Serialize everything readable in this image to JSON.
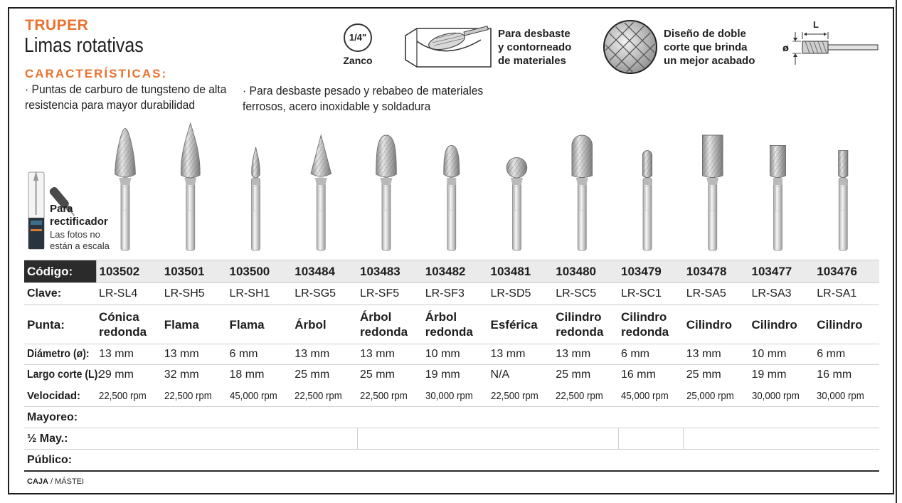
{
  "header": {
    "brand": "TRUPER",
    "title": "Limas rotativas",
    "features_heading": "CARACTERÍSTICAS:",
    "bullets": [
      "· Puntas de carburo de tungsteno de alta resistencia para mayor durabilidad",
      "· Para desbaste pesado y rebabeo de materiales ferrosos, acero inoxidable y soldadura"
    ]
  },
  "icons": {
    "shank_size": "1/4\"",
    "shank_label": "Zanco",
    "deburr_text": [
      "Para desbaste",
      "y contorneado",
      "de materiales"
    ],
    "double_cut_text": [
      "Diseño de doble",
      "corte que brinda",
      "un mejor acabado"
    ],
    "dimension_L": "L",
    "dimension_diam": "ø"
  },
  "side": {
    "grinder_label_line1": "Para",
    "grinder_label_line2": "rectificador",
    "scale_note_line1": "Las fotos no",
    "scale_note_line2": "están a escala"
  },
  "table": {
    "labels": {
      "code": "Código:",
      "clave": "Clave:",
      "punta": "Punta:",
      "diametro": "Diámetro (ø):",
      "largo": "Largo corte (L):",
      "velocidad": "Velocidad:",
      "mayoreo": "Mayoreo:",
      "medio_mayoreo": "½ May.:",
      "publico": "Público:"
    },
    "products": [
      {
        "code": "103502",
        "clave": "LR-SL4",
        "punta": "Cónica redonda",
        "diametro": "13 mm",
        "largo": "29 mm",
        "velocidad": "22,500 rpm",
        "shape": "cone-round"
      },
      {
        "code": "103501",
        "clave": "LR-SH5",
        "punta": "Flama",
        "diametro": "13 mm",
        "largo": "32 mm",
        "velocidad": "22,500 rpm",
        "shape": "flame"
      },
      {
        "code": "103500",
        "clave": "LR-SH1",
        "punta": "Flama",
        "diametro": "6 mm",
        "largo": "18 mm",
        "velocidad": "45,000 rpm",
        "shape": "flame"
      },
      {
        "code": "103484",
        "clave": "LR-SG5",
        "punta": "Árbol",
        "diametro": "13 mm",
        "largo": "25 mm",
        "velocidad": "22,500 rpm",
        "shape": "tree"
      },
      {
        "code": "103483",
        "clave": "LR-SF5",
        "punta": "Árbol redonda",
        "diametro": "13 mm",
        "largo": "25 mm",
        "velocidad": "22,500 rpm",
        "shape": "tree-round"
      },
      {
        "code": "103482",
        "clave": "LR-SF3",
        "punta": "Árbol redonda",
        "diametro": "10 mm",
        "largo": "19 mm",
        "velocidad": "30,000 rpm",
        "shape": "tree-round"
      },
      {
        "code": "103481",
        "clave": "LR-SD5",
        "punta": "Esférica",
        "diametro": "13 mm",
        "largo": "N/A",
        "velocidad": "22,500 rpm",
        "shape": "ball"
      },
      {
        "code": "103480",
        "clave": "LR-SC5",
        "punta": "Cilindro redonda",
        "diametro": "13 mm",
        "largo": "25 mm",
        "velocidad": "22,500 rpm",
        "shape": "cylinder-round"
      },
      {
        "code": "103479",
        "clave": "LR-SC1",
        "punta": "Cilindro redonda",
        "diametro": "6 mm",
        "largo": "16 mm",
        "velocidad": "45,000 rpm",
        "shape": "cylinder-round"
      },
      {
        "code": "103478",
        "clave": "LR-SA5",
        "punta": "Cilindro",
        "diametro": "13 mm",
        "largo": "25 mm",
        "velocidad": "25,000 rpm",
        "shape": "cylinder"
      },
      {
        "code": "103477",
        "clave": "LR-SA3",
        "punta": "Cilindro",
        "diametro": "10 mm",
        "largo": "19 mm",
        "velocidad": "30,000 rpm",
        "shape": "cylinder"
      },
      {
        "code": "103476",
        "clave": "LR-SA1",
        "punta": "Cilindro",
        "diametro": "6 mm",
        "largo": "16 mm",
        "velocidad": "30,000 rpm",
        "shape": "cylinder"
      }
    ]
  },
  "footer": {
    "caja": "CAJA",
    "master": "/ MÁSTEI"
  },
  "colors": {
    "brand_orange": "#e8722e",
    "header_dark": "#2b2b2b",
    "code_row_bg": "#ebebeb"
  }
}
